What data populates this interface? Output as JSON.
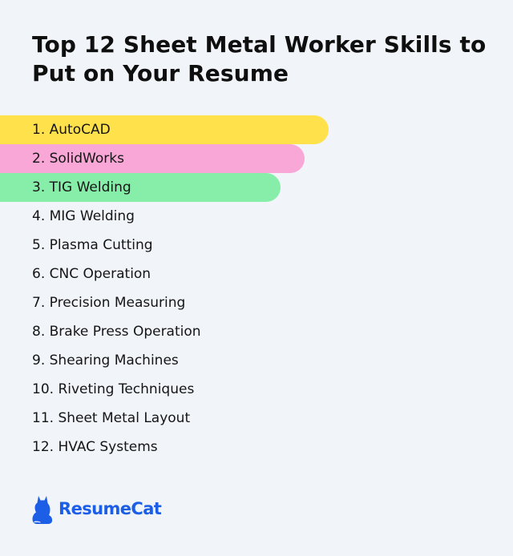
{
  "title": "Top 12 Sheet Metal Worker Skills to Put on Your Resume",
  "skills": [
    "1. AutoCAD",
    "2. SolidWorks",
    "3. TIG Welding",
    "4. MIG Welding",
    "5. Plasma Cutting",
    "6. CNC Operation",
    "7. Precision Measuring",
    "8. Brake Press Operation",
    "9. Shearing Machines",
    "10. Riveting Techniques",
    "11. Sheet Metal Layout",
    "12. HVAC Systems"
  ],
  "highlight_colors": [
    "#ffe14c",
    "#f8a7d6",
    "#87eeaa"
  ],
  "logo": {
    "text": "ResumeCat",
    "icon": "cat-icon",
    "color": "#1d5ee6"
  },
  "background_color": "#f1f4f9"
}
